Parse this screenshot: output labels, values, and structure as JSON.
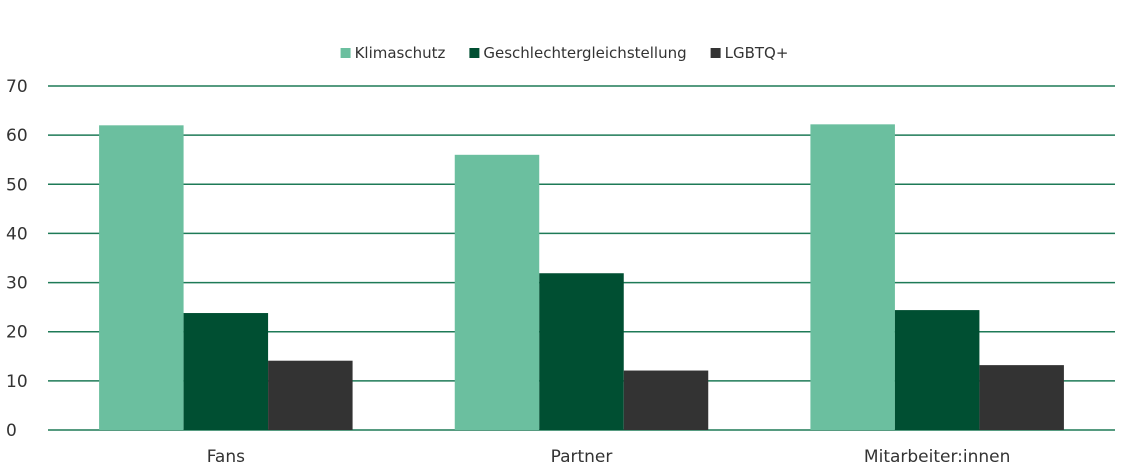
{
  "chart_data": {
    "type": "bar",
    "categories": [
      "Fans",
      "Partner",
      "Mitarbeiter:innen"
    ],
    "series": [
      {
        "name": "Klimaschutz",
        "color": "#6bbf9f",
        "values": [
          62,
          56,
          62.2
        ]
      },
      {
        "name": "Geschlechtergleichstellung",
        "color": "#004f32",
        "values": [
          23.8,
          31.9,
          24.4
        ]
      },
      {
        "name": "LGBTQ+",
        "color": "#333333",
        "values": [
          14.1,
          12.1,
          13.2
        ]
      }
    ],
    "ylim": [
      0,
      70
    ],
    "yticks": [
      "0",
      "10",
      "20",
      "30",
      "40",
      "50",
      "60",
      "70"
    ],
    "grid": true,
    "grid_color": "#1e7a57",
    "legend_position": "top-center"
  }
}
